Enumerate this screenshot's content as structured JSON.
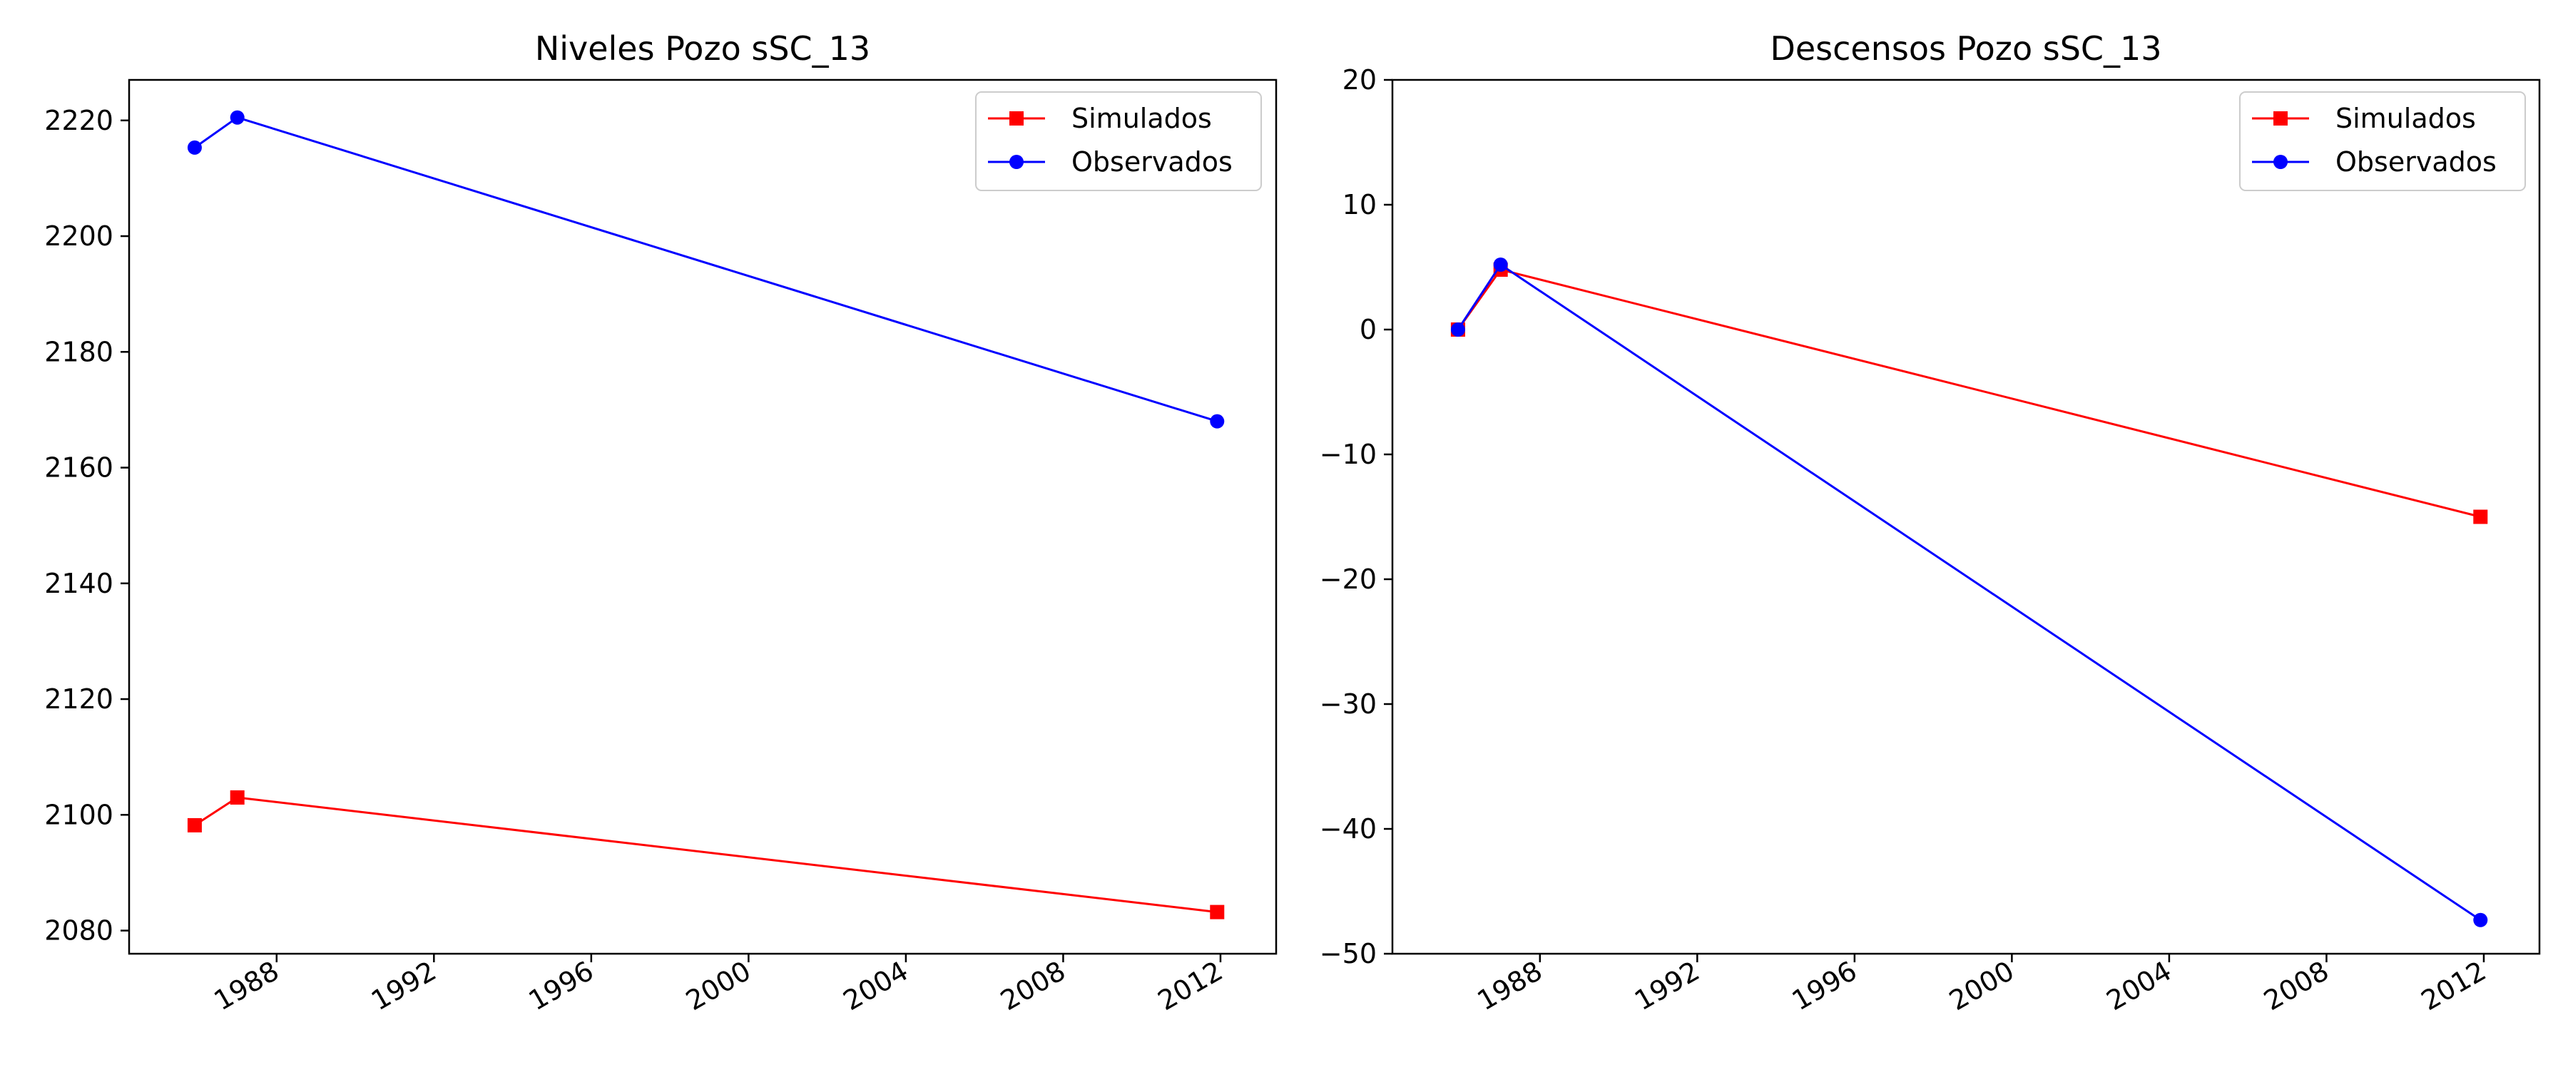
{
  "chart_data": [
    {
      "type": "line",
      "title": "Niveles Pozo sSC_13",
      "xlabel": "",
      "ylabel": "",
      "x_axis": "date",
      "xlim": [
        "1984-04-01",
        "2013-06-01"
      ],
      "ylim": [
        2076,
        2227
      ],
      "x_ticks": [
        "1988",
        "1992",
        "1996",
        "2000",
        "2004",
        "2008",
        "2012"
      ],
      "y_ticks": [
        2080,
        2100,
        2120,
        2140,
        2160,
        2180,
        2200,
        2220
      ],
      "legend_position": "top-right",
      "grid": false,
      "series": [
        {
          "name": "Simulados",
          "color": "#ff0000",
          "marker": "square",
          "x": [
            "1985-12-01",
            "1987-01-01",
            "2011-12-01"
          ],
          "y": [
            2098.2,
            2103.0,
            2083.2
          ]
        },
        {
          "name": "Observados",
          "color": "#0000ff",
          "marker": "circle",
          "x": [
            "1985-12-01",
            "1987-01-01",
            "2011-12-01"
          ],
          "y": [
            2215.3,
            2220.5,
            2168.0
          ]
        }
      ]
    },
    {
      "type": "line",
      "title": "Descensos Pozo sSC_13",
      "xlabel": "",
      "ylabel": "",
      "x_axis": "date",
      "xlim": [
        "1984-04-01",
        "2013-06-01"
      ],
      "ylim": [
        -50,
        20
      ],
      "x_ticks": [
        "1988",
        "1992",
        "1996",
        "2000",
        "2004",
        "2008",
        "2012"
      ],
      "y_ticks": [
        -50,
        -40,
        -30,
        -20,
        -10,
        0,
        10,
        20
      ],
      "legend_position": "top-right",
      "grid": false,
      "series": [
        {
          "name": "Simulados",
          "color": "#ff0000",
          "marker": "square",
          "x": [
            "1985-12-01",
            "1987-01-01",
            "2011-12-01"
          ],
          "y": [
            0.0,
            4.8,
            -15.0
          ]
        },
        {
          "name": "Observados",
          "color": "#0000ff",
          "marker": "circle",
          "x": [
            "1985-12-01",
            "1987-01-01",
            "2011-12-01"
          ],
          "y": [
            0.0,
            5.2,
            -47.3
          ]
        }
      ]
    }
  ]
}
